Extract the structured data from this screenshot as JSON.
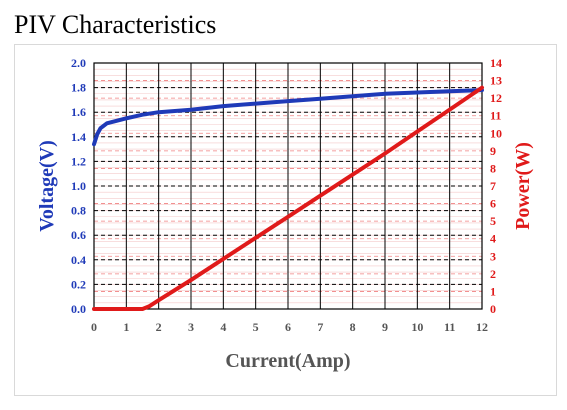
{
  "page": {
    "title": "PIV Characteristics"
  },
  "chart_data": {
    "type": "line",
    "xlabel": "Current(Amp)",
    "y_left_label": "Voltage(V)",
    "y_right_label": "Power(W)",
    "xlim": [
      0,
      12
    ],
    "y_left_lim": [
      0,
      2.0
    ],
    "y_right_lim": [
      0,
      14
    ],
    "x_ticks": [
      "0",
      "1",
      "2",
      "3",
      "4",
      "5",
      "6",
      "7",
      "8",
      "9",
      "10",
      "11",
      "12"
    ],
    "y_left_ticks": [
      "0.0",
      "0.2",
      "0.4",
      "0.6",
      "0.8",
      "1.0",
      "1.2",
      "1.4",
      "1.6",
      "1.8",
      "2.0"
    ],
    "y_right_ticks": [
      "0",
      "1",
      "2",
      "3",
      "4",
      "5",
      "6",
      "7",
      "8",
      "9",
      "10",
      "11",
      "12",
      "13",
      "14"
    ],
    "grid": true,
    "colors": {
      "voltage": "#1f3ab8",
      "power": "#e01a1a"
    },
    "series": [
      {
        "axis": "left",
        "points": [
          [
            0,
            1.34
          ],
          [
            0.1,
            1.42
          ],
          [
            0.2,
            1.47
          ],
          [
            0.4,
            1.51
          ],
          [
            0.7,
            1.53
          ],
          [
            1.0,
            1.55
          ],
          [
            1.5,
            1.58
          ],
          [
            2.0,
            1.6
          ],
          [
            3,
            1.62
          ],
          [
            4,
            1.65
          ],
          [
            5,
            1.67
          ],
          [
            6,
            1.69
          ],
          [
            7,
            1.71
          ],
          [
            8,
            1.73
          ],
          [
            9,
            1.75
          ],
          [
            10,
            1.76
          ],
          [
            11,
            1.77
          ],
          [
            12,
            1.78
          ]
        ]
      },
      {
        "axis": "right",
        "points": [
          [
            0,
            0
          ],
          [
            1.5,
            0
          ],
          [
            1.7,
            0.15
          ],
          [
            2,
            0.5
          ],
          [
            3,
            1.65
          ],
          [
            4,
            2.85
          ],
          [
            5,
            4.05
          ],
          [
            6,
            5.25
          ],
          [
            7,
            6.45
          ],
          [
            8,
            7.65
          ],
          [
            9,
            8.85
          ],
          [
            10,
            10.1
          ],
          [
            11,
            11.35
          ],
          [
            12,
            12.6
          ]
        ]
      }
    ]
  }
}
